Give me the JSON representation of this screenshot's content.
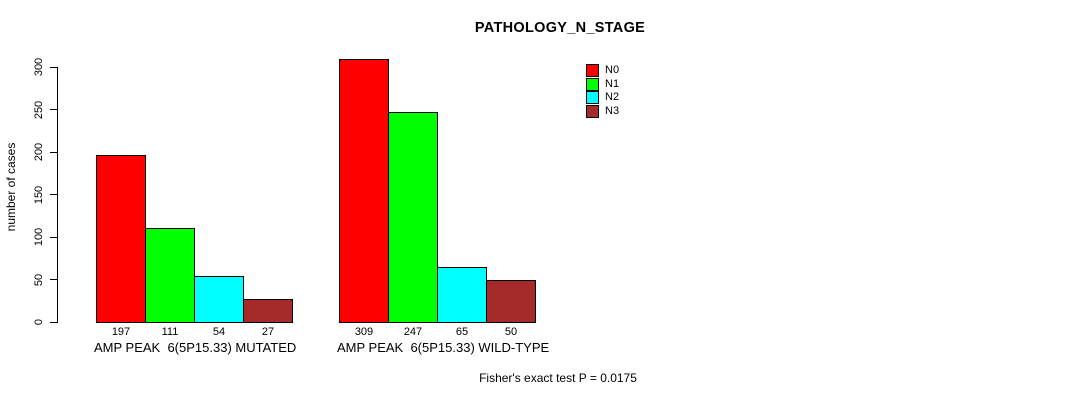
{
  "chart_data": {
    "type": "bar",
    "title": "PATHOLOGY_N_STAGE",
    "ylabel": "number of cases",
    "xlabel": "",
    "ylim": [
      0,
      300
    ],
    "yticks": [
      0,
      50,
      100,
      150,
      200,
      250,
      300
    ],
    "grid": false,
    "legend_position": "top-right",
    "show_bar_value_labels": true,
    "categories": [
      "AMP PEAK  6(5P15.33) MUTATED",
      "AMP PEAK  6(5P15.33) WILD-TYPE"
    ],
    "category_slugs": [
      "mutated",
      "wild-type"
    ],
    "series": [
      {
        "name": "N0",
        "color": "#ff0000",
        "values": [
          197,
          309
        ]
      },
      {
        "name": "N1",
        "color": "#00ff00",
        "values": [
          111,
          247
        ]
      },
      {
        "name": "N2",
        "color": "#00ffff",
        "values": [
          54,
          65
        ]
      },
      {
        "name": "N3",
        "color": "#a52a2a",
        "values": [
          27,
          50
        ]
      }
    ],
    "annotation": "Fisher's exact test P = 0.0175"
  }
}
